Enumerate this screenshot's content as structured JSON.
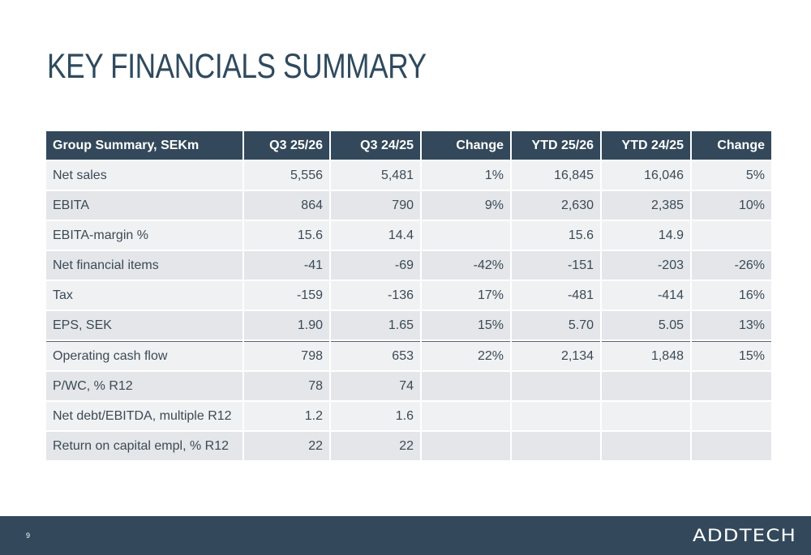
{
  "title": "KEY FINANCIALS SUMMARY",
  "table": {
    "headers": [
      "Group Summary, SEKm",
      "Q3 25/26",
      "Q3 24/25",
      "Change",
      "YTD 25/26",
      "YTD 24/25",
      "Change"
    ],
    "rows": [
      [
        "Net sales",
        "5,556",
        "5,481",
        "1%",
        "16,845",
        "16,046",
        "5%"
      ],
      [
        "EBITA",
        "864",
        "790",
        "9%",
        "2,630",
        "2,385",
        "10%"
      ],
      [
        "EBITA-margin %",
        "15.6",
        "14.4",
        "",
        "15.6",
        "14.9",
        ""
      ],
      [
        "Net financial items",
        "-41",
        "-69",
        "-42%",
        "-151",
        "-203",
        "-26%"
      ],
      [
        "Tax",
        "-159",
        "-136",
        "17%",
        "-481",
        "-414",
        "16%"
      ],
      [
        "EPS, SEK",
        "1.90",
        "1.65",
        "15%",
        "5.70",
        "5.05",
        "13%"
      ],
      [
        "Operating cash flow",
        "798",
        "653",
        "22%",
        "2,134",
        "1,848",
        "15%"
      ],
      [
        "P/WC, % R12",
        "78",
        "74",
        "",
        "",
        "",
        ""
      ],
      [
        "Net debt/EBITDA, multiple R12",
        "1.2",
        "1.6",
        "",
        "",
        "",
        ""
      ],
      [
        "Return on capital empl, % R12",
        "22",
        "22",
        "",
        "",
        "",
        ""
      ]
    ]
  },
  "footer": {
    "page_number": "9",
    "logo_text": "ADDTECH"
  },
  "colors": {
    "header_bg": "#33495b",
    "footer_bg": "#33495b",
    "row_light": "#f0f1f3",
    "row_dark": "#e4e6e9"
  }
}
